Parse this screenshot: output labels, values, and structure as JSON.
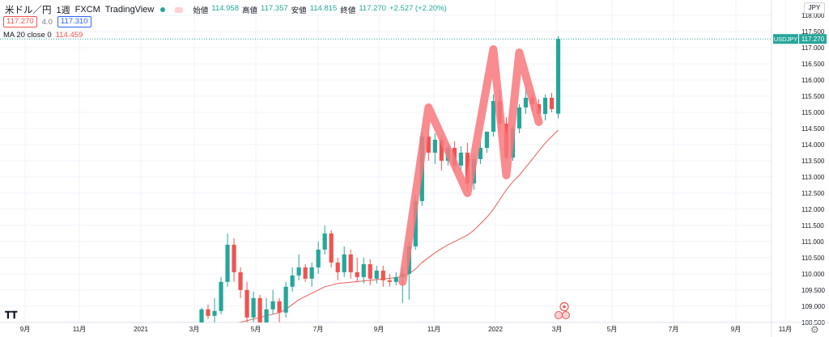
{
  "header": {
    "symbol": "米ドル／円",
    "interval": "1週",
    "source": "FXCM",
    "platform": "TradingView",
    "open_label": "始値",
    "open": "114.958",
    "high_label": "高値",
    "high": "117.357",
    "low_label": "安値",
    "low": "114.815",
    "close_label": "終値",
    "close": "117.270",
    "change": "+2.527 (+2.20%)",
    "bid": "117.270",
    "spread": "4.0",
    "ask": "117.310"
  },
  "indicator": {
    "label": "MA 20 close 0",
    "value": "114.459"
  },
  "currency_button": "JPY",
  "price_tag": {
    "symbol": "USDJPY",
    "price": "117.270"
  },
  "colors": {
    "up": "#26a69a",
    "down": "#ef5350",
    "ma": "#f05a5a",
    "pattern": "#f8787c",
    "price_line": "#26a69a"
  },
  "icons": [
    "tradingview-logo-icon",
    "settings-gear-icon",
    "event-flag-icon"
  ],
  "chart_data": {
    "type": "candlestick",
    "title": "",
    "xlabel": "",
    "ylabel": "",
    "ylim": [
      108.5,
      118.0
    ],
    "y_ticks": [
      "118.000",
      "117.500",
      "117.000",
      "116.500",
      "116.000",
      "115.500",
      "115.000",
      "114.500",
      "114.000",
      "113.500",
      "113.000",
      "112.500",
      "112.000",
      "111.500",
      "111.000",
      "110.500",
      "110.000",
      "109.500",
      "109.000",
      "108.500"
    ],
    "x_ticks": [
      "9月",
      "11月",
      "2021",
      "3月",
      "5月",
      "7月",
      "9月",
      "11月",
      "2022",
      "3月",
      "5月",
      "7月",
      "9月",
      "11月"
    ],
    "grid": true,
    "candles": [
      [
        108.35,
        108.95,
        108.2,
        108.9
      ],
      [
        108.9,
        109.05,
        108.6,
        108.7
      ],
      [
        108.7,
        109.25,
        108.5,
        108.85
      ],
      [
        108.85,
        109.9,
        108.75,
        109.75
      ],
      [
        109.75,
        111.25,
        109.6,
        110.9
      ],
      [
        110.9,
        111.1,
        109.75,
        110.05
      ],
      [
        110.05,
        110.2,
        109.25,
        109.5
      ],
      [
        109.5,
        109.75,
        108.4,
        108.65
      ],
      [
        108.65,
        109.45,
        108.5,
        109.25
      ],
      [
        109.25,
        109.35,
        108.2,
        108.45
      ],
      [
        108.45,
        109.25,
        108.35,
        108.9
      ],
      [
        108.9,
        109.5,
        108.75,
        109.15
      ],
      [
        109.15,
        109.25,
        108.5,
        108.8
      ],
      [
        108.8,
        109.75,
        108.65,
        109.6
      ],
      [
        109.6,
        110.2,
        109.45,
        109.95
      ],
      [
        109.95,
        110.6,
        109.8,
        110.2
      ],
      [
        110.2,
        110.3,
        109.75,
        109.85
      ],
      [
        109.85,
        110.35,
        109.6,
        110.2
      ],
      [
        110.2,
        111.0,
        110.0,
        110.75
      ],
      [
        110.75,
        111.5,
        110.6,
        111.25
      ],
      [
        111.25,
        111.35,
        110.2,
        110.35
      ],
      [
        110.35,
        110.5,
        109.8,
        110.05
      ],
      [
        110.05,
        110.85,
        109.9,
        110.6
      ],
      [
        110.6,
        110.75,
        109.85,
        110.05
      ],
      [
        110.05,
        110.5,
        109.75,
        109.9
      ],
      [
        109.9,
        110.5,
        109.7,
        110.3
      ],
      [
        110.3,
        110.45,
        109.65,
        109.85
      ],
      [
        109.85,
        110.25,
        109.7,
        110.1
      ],
      [
        110.1,
        110.25,
        109.6,
        109.8
      ],
      [
        109.8,
        110.0,
        109.6,
        109.75
      ],
      [
        109.75,
        110.05,
        109.65,
        109.9
      ],
      [
        109.9,
        110.2,
        109.1,
        110.0
      ],
      [
        110.0,
        111.0,
        109.2,
        110.85
      ],
      [
        110.85,
        112.45,
        110.75,
        112.25
      ],
      [
        112.25,
        114.4,
        112.1,
        114.25
      ],
      [
        114.25,
        114.5,
        113.5,
        113.75
      ],
      [
        113.75,
        114.35,
        113.4,
        114.15
      ],
      [
        114.15,
        114.3,
        113.2,
        113.5
      ],
      [
        113.5,
        114.0,
        113.35,
        113.9
      ],
      [
        113.9,
        114.1,
        113.15,
        113.35
      ],
      [
        113.35,
        113.95,
        113.2,
        113.75
      ],
      [
        113.75,
        114.05,
        112.55,
        112.8
      ],
      [
        112.8,
        113.7,
        112.6,
        113.55
      ],
      [
        113.55,
        114.1,
        113.4,
        113.9
      ],
      [
        113.9,
        114.4,
        113.75,
        114.4
      ],
      [
        114.4,
        115.55,
        114.25,
        115.35
      ],
      [
        115.35,
        115.7,
        114.4,
        114.65
      ],
      [
        114.65,
        114.85,
        113.5,
        113.6
      ],
      [
        113.6,
        114.6,
        113.5,
        114.5
      ],
      [
        114.5,
        115.25,
        114.35,
        115.15
      ],
      [
        115.15,
        115.75,
        114.95,
        115.45
      ],
      [
        115.45,
        115.6,
        115.05,
        115.25
      ],
      [
        115.25,
        115.4,
        114.85,
        114.95
      ],
      [
        114.95,
        115.55,
        114.75,
        115.45
      ],
      [
        115.45,
        115.6,
        115.0,
        115.1
      ],
      [
        114.958,
        117.357,
        114.815,
        117.27
      ]
    ],
    "ma20": [
      107.7,
      107.9,
      108.0,
      108.15,
      108.3,
      108.45,
      108.5,
      108.55,
      108.6,
      108.65,
      108.7,
      108.75,
      108.8,
      108.9,
      109.05,
      109.2,
      109.3,
      109.4,
      109.5,
      109.6,
      109.65,
      109.7,
      109.72,
      109.74,
      109.76,
      109.78,
      109.8,
      109.82,
      109.84,
      109.86,
      109.88,
      109.92,
      110.0,
      110.15,
      110.35,
      110.5,
      110.65,
      110.78,
      110.9,
      111.0,
      111.1,
      111.2,
      111.35,
      111.55,
      111.75,
      112.0,
      112.3,
      112.6,
      112.85,
      113.05,
      113.3,
      113.55,
      113.8,
      114.05,
      114.25,
      114.45
    ],
    "pattern_line": [
      [
        31,
        109.75
      ],
      [
        35,
        115.15
      ],
      [
        41,
        112.5
      ],
      [
        45,
        116.95
      ],
      [
        47,
        113.05
      ],
      [
        49,
        116.85
      ],
      [
        52,
        114.7
      ]
    ]
  }
}
